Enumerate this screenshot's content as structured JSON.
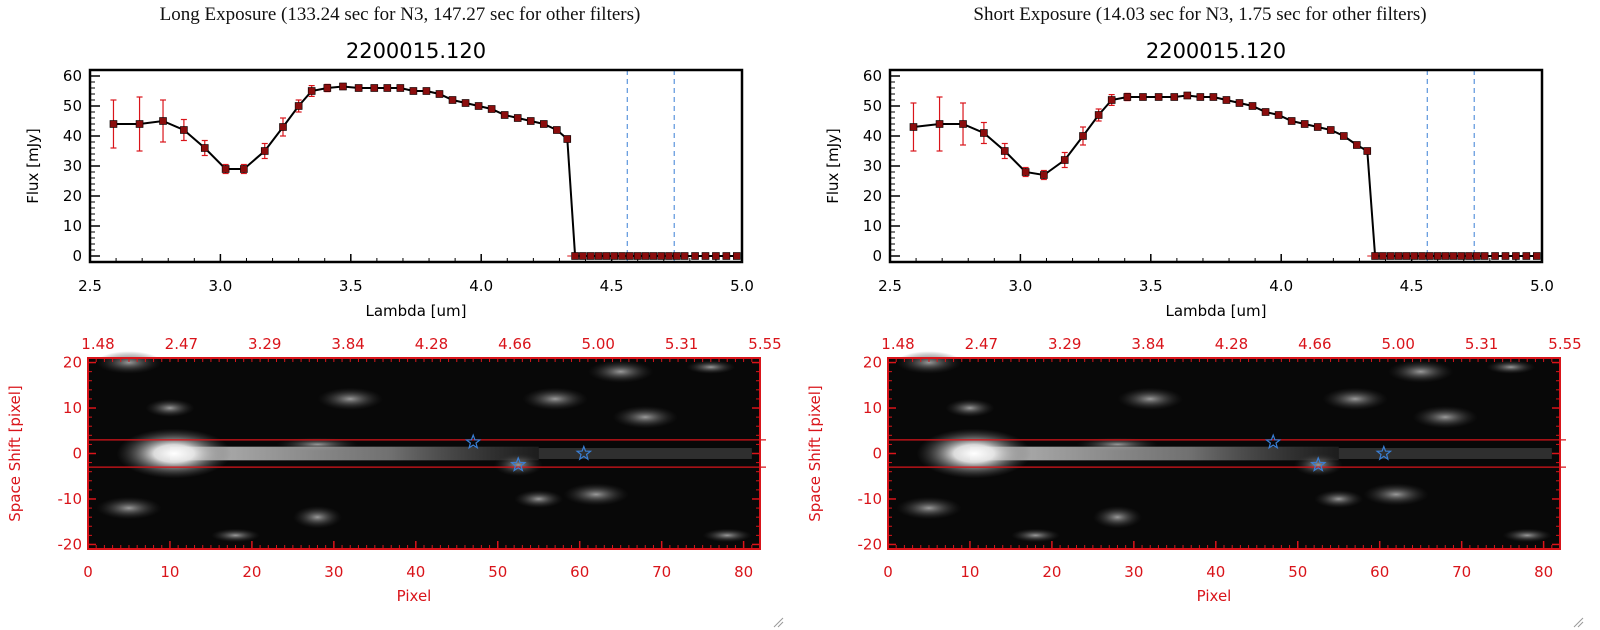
{
  "panels": [
    {
      "title": "Long Exposure (133.24 sec for N3, 147.27 sec for other filters)"
    },
    {
      "title": "Short Exposure (14.03 sec for N3, 1.75 sec for other filters)"
    }
  ],
  "colors": {
    "accent_red": "#d9141a",
    "marker": "#8b0d0d",
    "blue": "#3a7fd5",
    "line": "#000000"
  },
  "chart_data": [
    {
      "type": "line",
      "title": "2200015.120",
      "xlabel": "Lambda [um]",
      "ylabel": "Flux [mJy]",
      "xlim": [
        2.5,
        5.0
      ],
      "ylim": [
        -2,
        62
      ],
      "xticks": [
        "2.5",
        "3.0",
        "3.5",
        "4.0",
        "4.5",
        "5.0"
      ],
      "yticks": [
        "0",
        "10",
        "20",
        "30",
        "40",
        "50",
        "60"
      ],
      "vlines": [
        4.56,
        4.74
      ],
      "x": [
        2.59,
        2.69,
        2.78,
        2.86,
        2.94,
        3.02,
        3.09,
        3.17,
        3.24,
        3.3,
        3.35,
        3.41,
        3.47,
        3.53,
        3.59,
        3.64,
        3.69,
        3.74,
        3.79,
        3.84,
        3.89,
        3.94,
        3.99,
        4.04,
        4.09,
        4.14,
        4.19,
        4.24,
        4.29,
        4.33,
        4.36,
        4.39,
        4.42,
        4.45,
        4.48,
        4.51,
        4.54,
        4.57,
        4.6,
        4.63,
        4.66,
        4.69,
        4.72,
        4.75,
        4.78,
        4.82,
        4.86,
        4.9,
        4.94,
        4.98
      ],
      "y": [
        44,
        44,
        45,
        42,
        36,
        29,
        29,
        35,
        43,
        50,
        55,
        56,
        56.5,
        56,
        56,
        56,
        56,
        55,
        55,
        54,
        52,
        51,
        50,
        49,
        47,
        46,
        45,
        44,
        42,
        39,
        0,
        0,
        0,
        0,
        0,
        0,
        0,
        0,
        0,
        0,
        0,
        0,
        0,
        0,
        0,
        0,
        0,
        0,
        0,
        0
      ],
      "yerr": [
        8,
        9,
        7,
        3.5,
        2.5,
        1.5,
        1.5,
        2.5,
        3,
        2,
        1.8,
        1.2,
        1,
        1,
        1,
        1,
        1,
        1,
        1,
        1,
        1,
        1,
        1,
        1,
        1,
        1,
        1,
        1,
        1,
        1,
        0,
        0,
        0,
        0,
        0,
        0,
        0,
        0,
        0,
        0,
        0,
        0,
        0,
        0,
        0,
        0,
        0,
        0,
        0,
        0
      ]
    },
    {
      "type": "heatmap",
      "xlabel": "Pixel",
      "ylabel": "Space Shift [pixel]",
      "xlim": [
        0,
        82
      ],
      "ylim": [
        -21,
        21
      ],
      "xticks": [
        "0",
        "10",
        "20",
        "30",
        "40",
        "50",
        "60",
        "70",
        "80"
      ],
      "yticks": [
        "-20",
        "-10",
        "0",
        "10",
        "20"
      ],
      "top_ticks": [
        "1.48",
        "2.47",
        "3.29",
        "3.84",
        "4.28",
        "4.66",
        "5.00",
        "5.31",
        "5.55"
      ],
      "hlines": [
        3,
        -3
      ],
      "stars": [
        [
          47,
          2.5
        ],
        [
          52.5,
          -2.5
        ],
        [
          60.5,
          0
        ]
      ]
    },
    {
      "type": "line",
      "title": "2200015.120",
      "xlabel": "Lambda [um]",
      "ylabel": "Flux [mJy]",
      "xlim": [
        2.5,
        5.0
      ],
      "ylim": [
        -2,
        62
      ],
      "xticks": [
        "2.5",
        "3.0",
        "3.5",
        "4.0",
        "4.5",
        "5.0"
      ],
      "yticks": [
        "0",
        "10",
        "20",
        "30",
        "40",
        "50",
        "60"
      ],
      "vlines": [
        4.56,
        4.74
      ],
      "x": [
        2.59,
        2.69,
        2.78,
        2.86,
        2.94,
        3.02,
        3.09,
        3.17,
        3.24,
        3.3,
        3.35,
        3.41,
        3.47,
        3.53,
        3.59,
        3.64,
        3.69,
        3.74,
        3.79,
        3.84,
        3.89,
        3.94,
        3.99,
        4.04,
        4.09,
        4.14,
        4.19,
        4.24,
        4.29,
        4.33,
        4.36,
        4.39,
        4.42,
        4.45,
        4.48,
        4.51,
        4.54,
        4.57,
        4.6,
        4.63,
        4.66,
        4.69,
        4.72,
        4.75,
        4.78,
        4.82,
        4.86,
        4.9,
        4.94,
        4.98
      ],
      "y": [
        43,
        44,
        44,
        41,
        35,
        28,
        27,
        32,
        40,
        47,
        52,
        53,
        53,
        53,
        53,
        53.5,
        53,
        53,
        52,
        51,
        50,
        48,
        47,
        45,
        44,
        43,
        42,
        40,
        37,
        35,
        0,
        0,
        0,
        0,
        0,
        0,
        0,
        0,
        0,
        0,
        0,
        0,
        0,
        0,
        0,
        0,
        0,
        0,
        0,
        0
      ],
      "yerr": [
        8,
        9,
        7,
        3.5,
        2.5,
        1.5,
        1.5,
        2.5,
        3,
        2,
        1.8,
        1.2,
        1,
        1,
        1,
        1,
        1,
        1,
        1,
        1,
        1,
        1,
        1,
        1,
        1,
        1,
        1,
        1,
        1,
        1,
        0,
        0,
        0,
        0,
        0,
        0,
        0,
        0,
        0,
        0,
        0,
        0,
        0,
        0,
        0,
        0,
        0,
        0,
        0,
        0
      ]
    },
    {
      "type": "heatmap",
      "xlabel": "Pixel",
      "ylabel": "Space Shift [pixel]",
      "xlim": [
        0,
        82
      ],
      "ylim": [
        -21,
        21
      ],
      "xticks": [
        "0",
        "10",
        "20",
        "30",
        "40",
        "50",
        "60",
        "70",
        "80"
      ],
      "yticks": [
        "-20",
        "-10",
        "0",
        "10",
        "20"
      ],
      "top_ticks": [
        "1.48",
        "2.47",
        "3.29",
        "3.84",
        "4.28",
        "4.66",
        "5.00",
        "5.31",
        "5.55"
      ],
      "hlines": [
        3,
        -3
      ],
      "stars": [
        [
          47,
          2.5
        ],
        [
          52.5,
          -2.5
        ],
        [
          60.5,
          0
        ]
      ]
    }
  ]
}
